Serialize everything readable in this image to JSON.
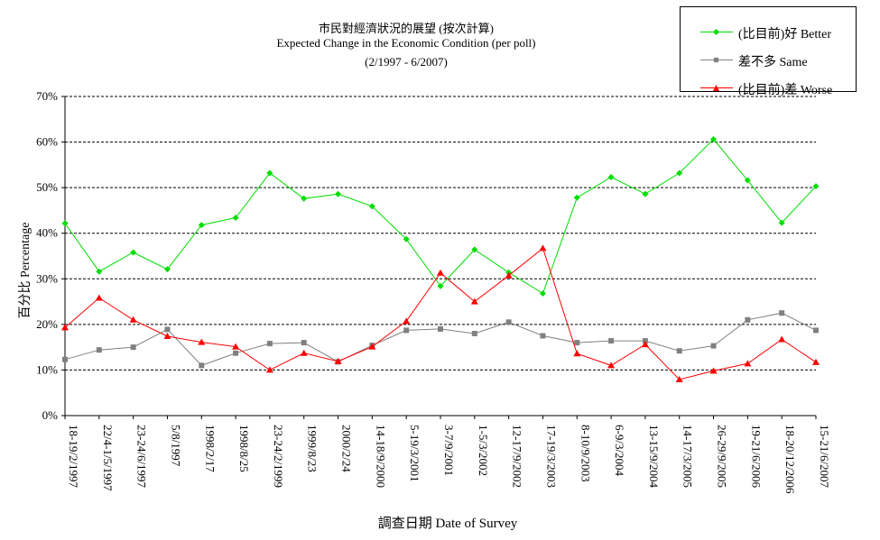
{
  "chart_data": {
    "type": "line",
    "title": "市民對經濟狀況的展望 (按次計算)",
    "subtitle": "Expected Change in the Economic Condition  (per poll)",
    "period": "(2/1997 - 6/2007)",
    "xlabel": "調查日期 Date of Survey",
    "ylabel": "百分比 Percentage",
    "ylim": [
      0,
      70
    ],
    "yticks": [
      "0%",
      "10%",
      "20%",
      "30%",
      "40%",
      "50%",
      "60%",
      "70%"
    ],
    "grid": true,
    "legend_position": "top-right",
    "categories": [
      "18-19/2/1997",
      "22/4-1/5/1997",
      "23-24/6/1997",
      "5/8/1997",
      "1998/2/17",
      "1998/8/25",
      "23-24/2/1999",
      "1999/8/23",
      "2000/2/24",
      "14-18/9/2000",
      "5-19/3/2001",
      "3-7/9/2001",
      "1-5/3/2002",
      "12-17/9/2002",
      "17-19/3/2003",
      "8-10/9/2003",
      "6-9/3/2004",
      "13-15/9/2004",
      "14-17/3/2005",
      "26-29/9/2005",
      "19-21/6/2006",
      "18-20/12/2006",
      "15-21/6/2007"
    ],
    "series": [
      {
        "name": "(比目前)好 Better",
        "color": "#00dd00",
        "marker": "diamond",
        "values": [
          42.2,
          31.6,
          35.8,
          32.1,
          41.8,
          43.4,
          53.2,
          47.6,
          48.6,
          45.9,
          38.7,
          28.4,
          36.4,
          31.4,
          26.8,
          47.8,
          52.3,
          48.6,
          53.2,
          60.6,
          51.6,
          42.3,
          50.3
        ]
      },
      {
        "name": "差不多 Same",
        "color": "#808080",
        "marker": "square",
        "values": [
          12.3,
          14.4,
          15.0,
          18.9,
          11.0,
          13.7,
          15.8,
          16.0,
          11.8,
          15.4,
          18.7,
          19.0,
          18.0,
          20.5,
          17.5,
          16.0,
          16.4,
          16.4,
          14.2,
          15.3,
          21.0,
          22.5,
          18.7
        ]
      },
      {
        "name": "(比目前)差 Worse",
        "color": "#ff0000",
        "marker": "triangle",
        "values": [
          19.3,
          25.8,
          21.0,
          17.4,
          16.1,
          15.1,
          10.0,
          13.7,
          11.9,
          15.1,
          20.7,
          31.3,
          25.0,
          30.7,
          36.7,
          13.6,
          11.0,
          15.6,
          7.9,
          9.8,
          11.4,
          16.7,
          11.7
        ]
      }
    ]
  }
}
